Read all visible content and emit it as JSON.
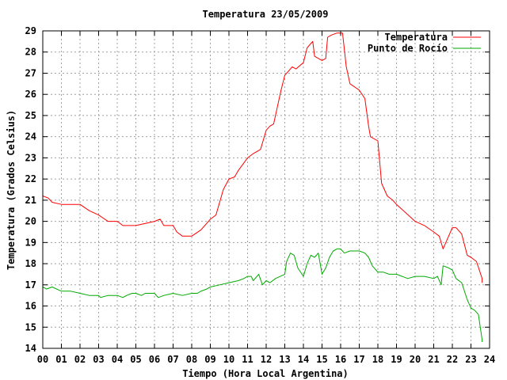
{
  "chart_data": {
    "type": "line",
    "title": "Temperatura 23/05/2009",
    "xlabel": "Tiempo (Hora Local Argentina)",
    "ylabel": "Temperatura (Grados Celsius)",
    "xlim": [
      0,
      24
    ],
    "ylim": [
      14,
      29
    ],
    "xticks": [
      "00",
      "01",
      "02",
      "03",
      "04",
      "05",
      "06",
      "07",
      "08",
      "09",
      "10",
      "11",
      "12",
      "13",
      "14",
      "15",
      "16",
      "17",
      "18",
      "19",
      "20",
      "21",
      "22",
      "23",
      "24"
    ],
    "yticks": [
      "14",
      "15",
      "16",
      "17",
      "18",
      "19",
      "20",
      "21",
      "22",
      "23",
      "24",
      "25",
      "26",
      "27",
      "28",
      "29"
    ],
    "grid": true,
    "legend_position": "top-right",
    "series": [
      {
        "name": "Temperatura",
        "color": "#ff0000",
        "x": [
          0,
          0.3,
          0.5,
          1,
          1.1,
          2,
          2.5,
          3,
          3.5,
          4,
          4.3,
          5,
          5.5,
          6,
          6.3,
          6.5,
          7,
          7.2,
          7.5,
          8,
          8.5,
          9,
          9.3,
          9.7,
          10,
          10.3,
          10.5,
          11,
          11.3,
          11.5,
          11.7,
          12,
          12.2,
          12.4,
          12.6,
          12.8,
          13,
          13.2,
          13.4,
          13.6,
          14,
          14.2,
          14.4,
          14.5,
          14.6,
          15,
          15.2,
          15.3,
          15.5,
          15.8,
          16.1,
          16.3,
          16.5,
          17,
          17.3,
          17.5,
          17.6,
          18,
          18.2,
          18.5,
          18.8,
          19,
          19.5,
          20,
          20.5,
          21,
          21.3,
          21.5,
          22,
          22.2,
          22.5,
          22.8,
          23,
          23.3,
          23.6
        ],
        "y": [
          21.2,
          21.1,
          20.9,
          20.8,
          20.8,
          20.8,
          20.5,
          20.3,
          20,
          20,
          19.8,
          19.8,
          19.9,
          20,
          20.1,
          19.8,
          19.8,
          19.5,
          19.3,
          19.3,
          19.6,
          20.1,
          20.3,
          21.5,
          22,
          22.1,
          22.4,
          23,
          23.2,
          23.3,
          23.4,
          24.3,
          24.5,
          24.6,
          25.4,
          26.2,
          26.9,
          27.1,
          27.3,
          27.2,
          27.5,
          28.2,
          28.4,
          28.5,
          27.8,
          27.6,
          27.7,
          28.7,
          28.8,
          28.9,
          28.9,
          27.3,
          26.5,
          26.2,
          25.8,
          24.5,
          24,
          23.8,
          21.8,
          21.2,
          21,
          20.8,
          20.4,
          20,
          19.8,
          19.5,
          19.3,
          18.7,
          19.7,
          19.7,
          19.4,
          18.4,
          18.3,
          18.1,
          17.3
        ],
        "y_end": 17.1
      },
      {
        "name": "Punto de Rocío",
        "color": "#00aa00",
        "x": [
          0,
          0.2,
          0.5,
          1,
          1.5,
          2,
          2.5,
          3,
          3.1,
          3.5,
          4,
          4.3,
          4.5,
          4.8,
          5,
          5.3,
          5.5,
          6,
          6.2,
          6.5,
          7,
          7.5,
          8,
          8.3,
          8.5,
          8.8,
          9,
          9.5,
          10,
          10.5,
          10.8,
          11,
          11.2,
          11.3,
          11.6,
          11.8,
          12,
          12.2,
          12.5,
          13,
          13.1,
          13.3,
          13.5,
          13.7,
          14,
          14.2,
          14.4,
          14.6,
          14.8,
          15,
          15.2,
          15.4,
          15.6,
          15.8,
          16,
          16.2,
          16.5,
          16.8,
          17,
          17.3,
          17.5,
          17.7,
          18,
          18.3,
          18.6,
          19,
          19.3,
          19.6,
          20,
          20.5,
          21,
          21.2,
          21.4,
          21.5,
          21.8,
          22,
          22.2,
          22.5,
          22.8,
          23,
          23.2,
          23.4,
          23.6
        ],
        "y": [
          16.9,
          16.8,
          16.9,
          16.7,
          16.7,
          16.6,
          16.5,
          16.5,
          16.4,
          16.5,
          16.5,
          16.4,
          16.5,
          16.6,
          16.6,
          16.5,
          16.6,
          16.6,
          16.4,
          16.5,
          16.6,
          16.5,
          16.6,
          16.6,
          16.7,
          16.8,
          16.9,
          17,
          17.1,
          17.2,
          17.3,
          17.4,
          17.4,
          17.2,
          17.5,
          17,
          17.2,
          17.1,
          17.3,
          17.5,
          18.1,
          18.5,
          18.4,
          17.8,
          17.4,
          18,
          18.4,
          18.3,
          18.5,
          17.5,
          17.8,
          18.3,
          18.6,
          18.7,
          18.7,
          18.5,
          18.6,
          18.6,
          18.6,
          18.5,
          18.3,
          17.9,
          17.6,
          17.6,
          17.5,
          17.5,
          17.4,
          17.3,
          17.4,
          17.4,
          17.3,
          17.4,
          17.0,
          17.9,
          17.8,
          17.7,
          17.3,
          17.1,
          16.3,
          15.9,
          15.8,
          15.6,
          14.4
        ],
        "y_end": 14.3
      }
    ]
  }
}
